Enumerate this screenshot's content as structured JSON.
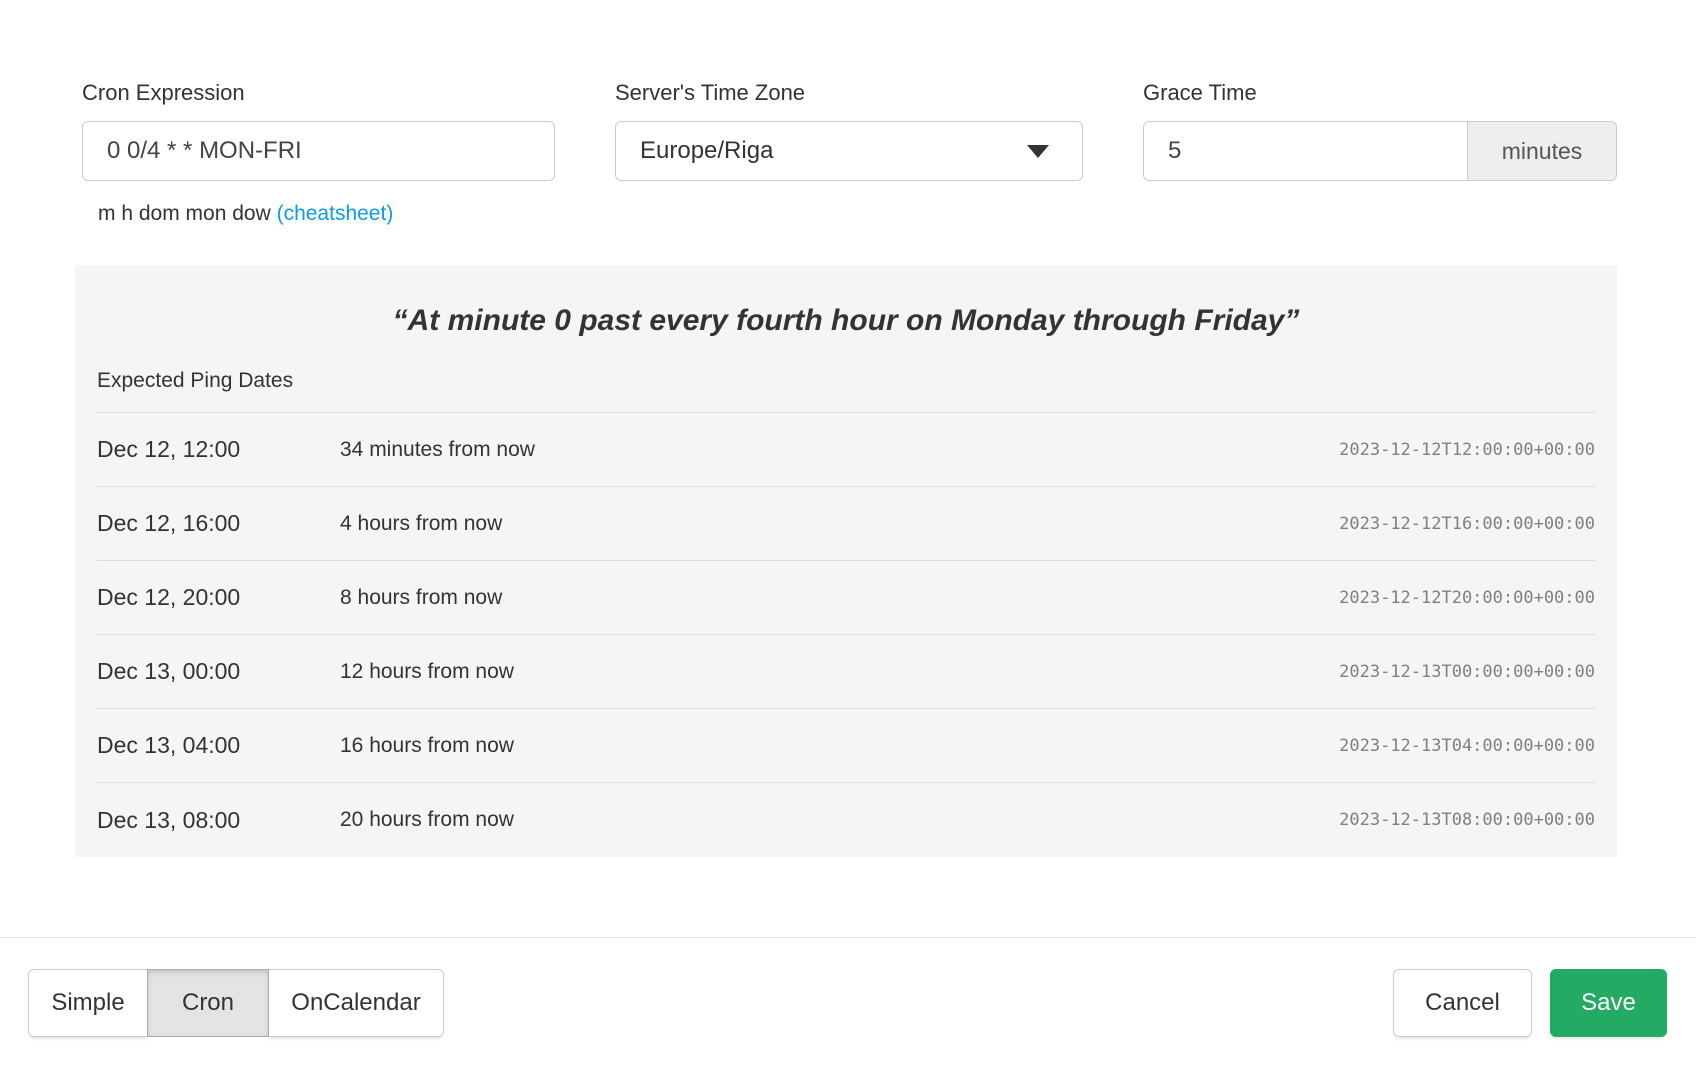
{
  "colors": {
    "accent_green": "#23ab63",
    "link_blue": "#0d9de5",
    "panel_background": "#f5f5f5"
  },
  "form": {
    "cron": {
      "label": "Cron Expression",
      "value": "0 0/4 * * MON-FRI",
      "help_prefix": "m h dom mon dow ",
      "help_link": "(cheatsheet)"
    },
    "timezone": {
      "label": "Server's Time Zone",
      "selected": "Europe/Riga",
      "caret_icon": "caret-down"
    },
    "grace": {
      "label": "Grace Time",
      "value": "5",
      "unit": "minutes"
    }
  },
  "preview": {
    "description": "“At minute 0 past every fourth hour on Monday through Friday”",
    "heading": "Expected Ping Dates",
    "rows": [
      {
        "date": "Dec 12, 12:00",
        "relative": "34 minutes from now",
        "iso": "2023-12-12T12:00:00+00:00"
      },
      {
        "date": "Dec 12, 16:00",
        "relative": "4 hours from now",
        "iso": "2023-12-12T16:00:00+00:00"
      },
      {
        "date": "Dec 12, 20:00",
        "relative": "8 hours from now",
        "iso": "2023-12-12T20:00:00+00:00"
      },
      {
        "date": "Dec 13, 00:00",
        "relative": "12 hours from now",
        "iso": "2023-12-13T00:00:00+00:00"
      },
      {
        "date": "Dec 13, 04:00",
        "relative": "16 hours from now",
        "iso": "2023-12-13T04:00:00+00:00"
      },
      {
        "date": "Dec 13, 08:00",
        "relative": "20 hours from now",
        "iso": "2023-12-13T08:00:00+00:00"
      }
    ]
  },
  "footer": {
    "modes": [
      {
        "label": "Simple",
        "active": false
      },
      {
        "label": "Cron",
        "active": true
      },
      {
        "label": "OnCalendar",
        "active": false
      }
    ],
    "cancel_label": "Cancel",
    "save_label": "Save"
  }
}
